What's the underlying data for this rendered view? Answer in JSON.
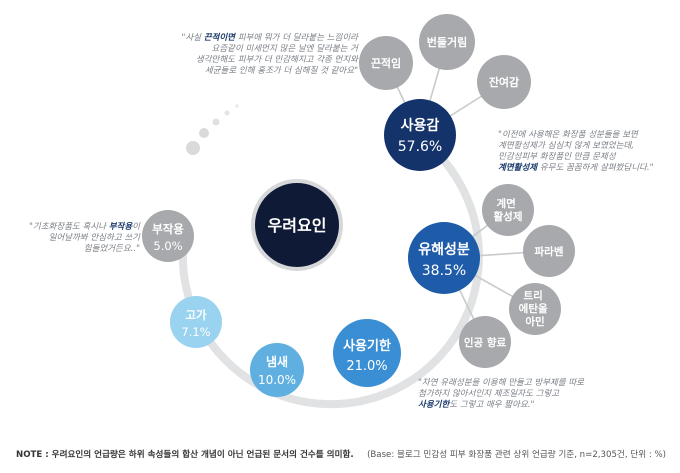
{
  "center": {
    "label": "우려요인"
  },
  "main_nodes": [
    {
      "id": "usage",
      "label": "사용감",
      "value": "57.6%"
    },
    {
      "id": "harmful",
      "label": "유해성분",
      "value": "38.5%"
    },
    {
      "id": "expiry",
      "label": "사용기한",
      "value": "21.0%"
    },
    {
      "id": "smell",
      "label": "냄새",
      "value": "10.0%"
    },
    {
      "id": "price",
      "label": "고가",
      "value": "7.1%"
    },
    {
      "id": "side",
      "label": "부작용",
      "value": "5.0%"
    }
  ],
  "sub_nodes": {
    "usage": [
      "끈적임",
      "번들거림",
      "잔여감"
    ],
    "harmful": [
      "계면\n활성제",
      "파라벤",
      "트리\n에탄올\n아민",
      "인공 향료"
    ]
  },
  "quotes": {
    "q1": {
      "pre": "\"사실 ",
      "highlight": "끈적이면",
      "post": " 피부에 뭐가 더 달라붙는 느낌이라\n요즘같이 미세먼지 많은 날엔 달라붙는 거\n생각만해도 피부가 더 민감해지고 각종 먼지와\n세균들로 인해 홍조가 더 심해질 것 같아요\""
    },
    "q2": {
      "pre": "\"이전에 사용해온 화장품 성분들을 보면\n계면활성제가 심심치 않게 보였었는데,\n민감성피부 화장품인 만큼 문제성\n",
      "highlight": "계면활성제",
      "post": " 유무도 꼼꼼하게 살펴봤답니다.\""
    },
    "q3": {
      "pre": "\"기초화장품도 혹시나 ",
      "highlight": "부작용",
      "post": "이\n일어날까봐 안심하고 쓰기\n힘들었거든요..\""
    },
    "q4": {
      "pre": "\"자연 유래성분을 이용해 만들고 방부제를 따로\n첨가하지 않아서인지 제조일자도 그렇고\n",
      "highlight": "사용기한",
      "post": "도 그렇고 매우 짧아요.\""
    }
  },
  "footer": {
    "note_prefix": "NOTE : ",
    "note_text": "우려요인의 언급량은 하위 속성들의 합산 개념이 아닌 언급된 문서의 건수를 의미함.",
    "base": "(Base: 블로그 민감성 피부 화장품 관련 상위 언급량 기준, n=2,305건, 단위 : %)"
  },
  "colors": {
    "center": "#0f1a36",
    "usage": "#15336b",
    "harmful": "#1e5caa",
    "expiry": "#3a8fd4",
    "smell": "#5fb0e0",
    "price": "#9ad3ef",
    "side": "#a7a9ac",
    "sub": "#a7a9ac",
    "ring": "#e1e2e4"
  }
}
